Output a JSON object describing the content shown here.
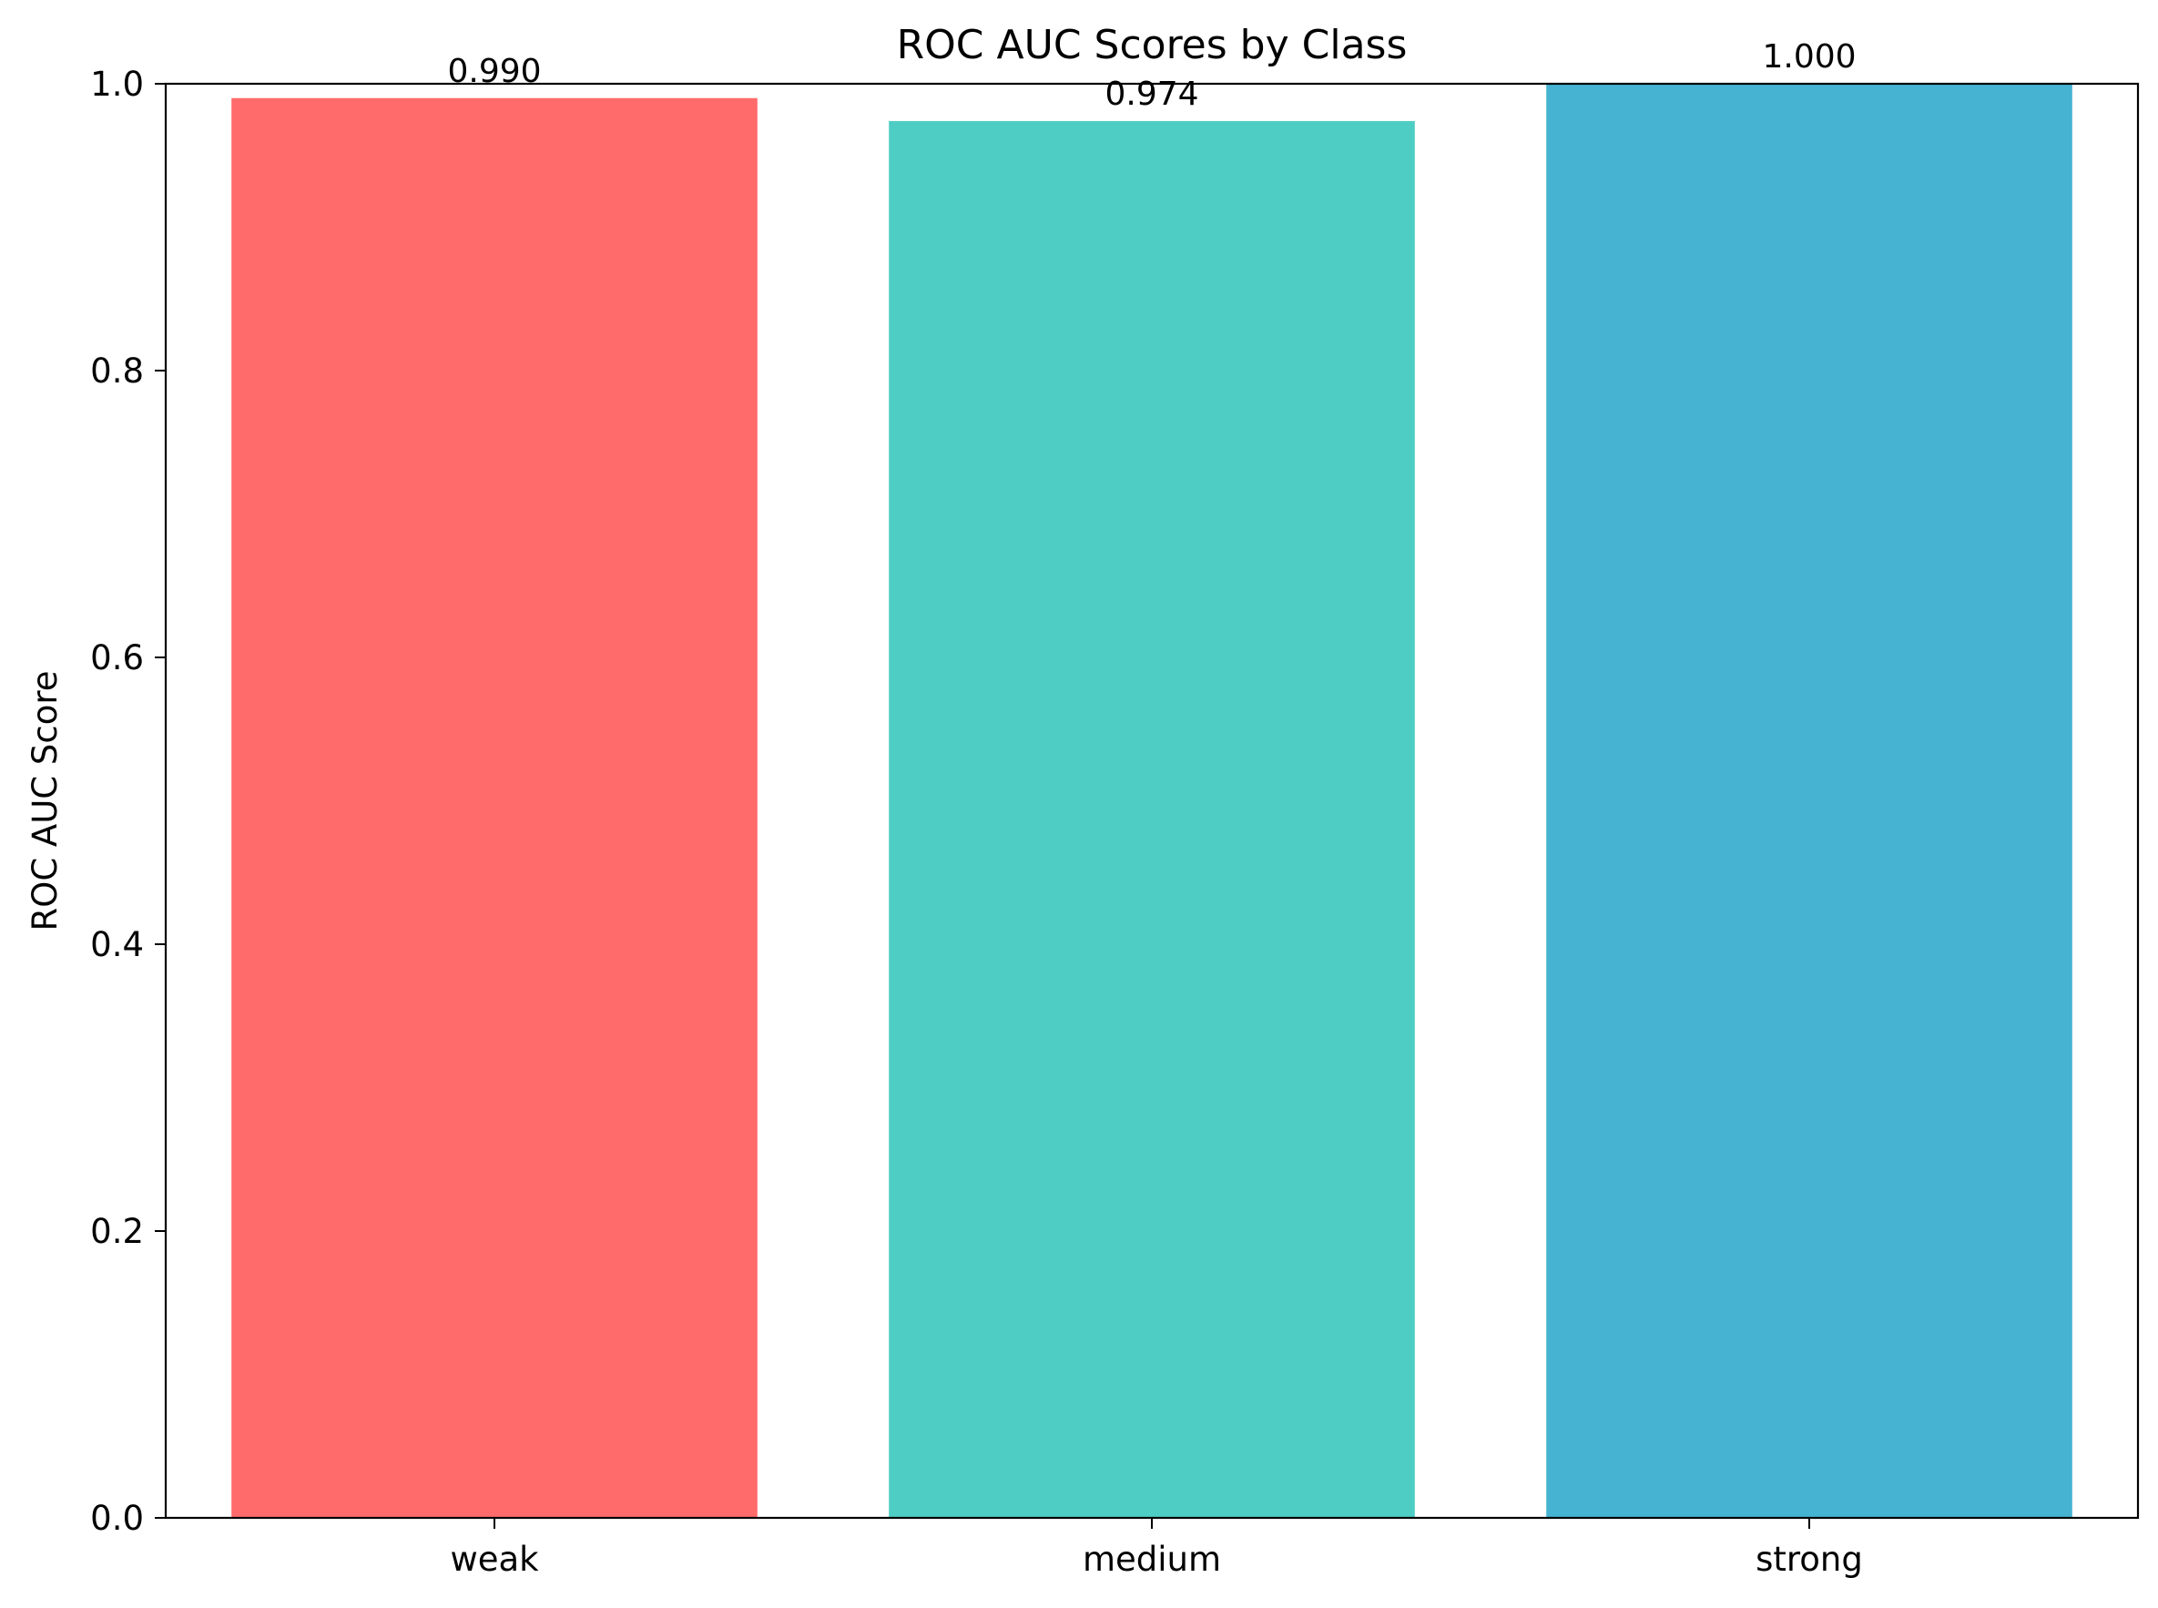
{
  "chart_data": {
    "type": "bar",
    "title": "ROC AUC Scores by Class",
    "xlabel": "",
    "ylabel": "ROC AUC Score",
    "categories": [
      "weak",
      "medium",
      "strong"
    ],
    "values": [
      0.99,
      0.974,
      1.0
    ],
    "value_labels": [
      "0.990",
      "0.974",
      "1.000"
    ],
    "colors": [
      "#FF6B6B",
      "#4ECDC4",
      "#45B3D1"
    ],
    "ylim": [
      0,
      1
    ],
    "yticks": [
      0.0,
      0.2,
      0.4,
      0.6,
      0.8,
      1.0
    ],
    "ytick_labels": [
      "0.0",
      "0.2",
      "0.4",
      "0.6",
      "0.8",
      "1.0"
    ],
    "grid": false,
    "legend": "none"
  }
}
